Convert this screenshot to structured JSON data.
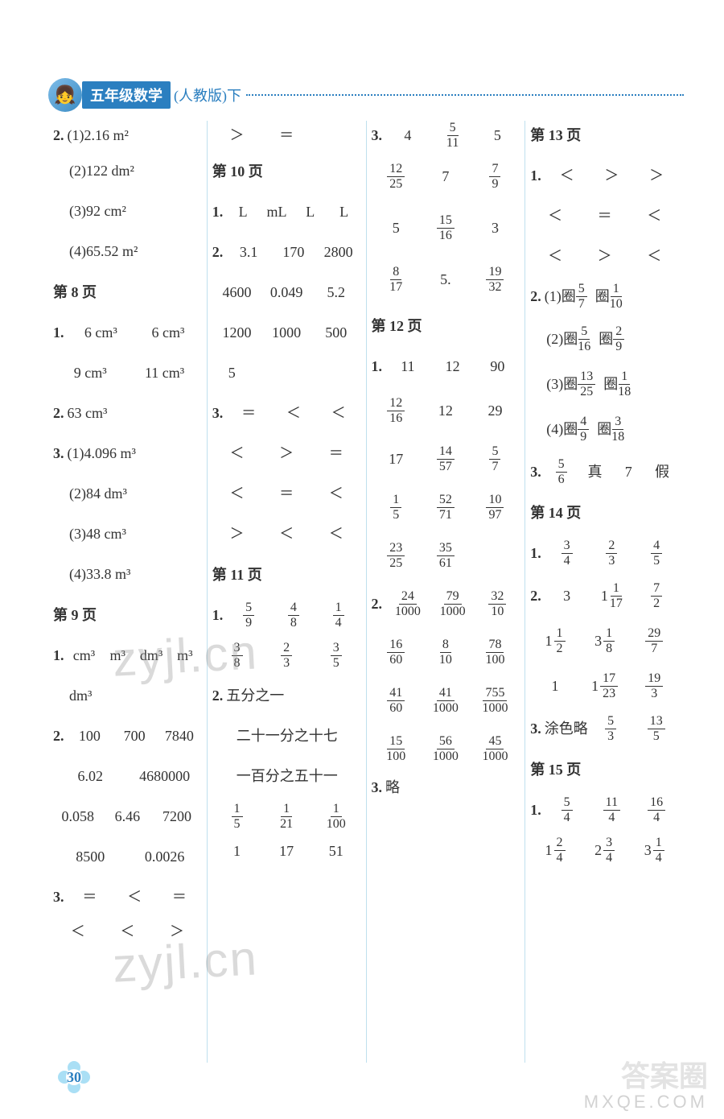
{
  "header": {
    "badge": "五年级数学",
    "sub": "(人教版)下"
  },
  "page_number": "30",
  "watermarks": {
    "site": "zyjl.cn",
    "bottom": "MXQE.COM",
    "logo": "答案圈"
  },
  "col1": {
    "r1": {
      "lead": "2.",
      "a": "(1)2.16 m²"
    },
    "r2": "(2)122 dm²",
    "r3": "(3)92 cm²",
    "r4": "(4)65.52 m²",
    "p8": "第 8 页",
    "r5": {
      "lead": "1.",
      "a": "6 cm³",
      "b": "6 cm³"
    },
    "r6": {
      "a": "9 cm³",
      "b": "11 cm³"
    },
    "r7": {
      "lead": "2.",
      "a": "63 cm³"
    },
    "r8": {
      "lead": "3.",
      "a": "(1)4.096 m³"
    },
    "r9": "(2)84 dm³",
    "r10": "(3)48 cm³",
    "r11": "(4)33.8 m³",
    "p9": "第 9 页",
    "r12": {
      "lead": "1.",
      "a": "cm³",
      "b": "m³",
      "c": "dm³",
      "d": "m³"
    },
    "r13": {
      "a": "dm³"
    },
    "r14": {
      "lead": "2.",
      "a": "100",
      "b": "700",
      "c": "7840"
    },
    "r15": {
      "a": "6.02",
      "b": "4680000"
    },
    "r16": {
      "a": "0.058",
      "b": "6.46",
      "c": "7200"
    },
    "r17": {
      "a": "8500",
      "b": "0.0026"
    },
    "r18": {
      "lead": "3.",
      "a": "＝",
      "b": "＜",
      "c": "＝"
    },
    "r19": {
      "a": "＜",
      "b": "＜",
      "c": "＞"
    }
  },
  "col2": {
    "r0": {
      "a": "＞",
      "b": "＝"
    },
    "p10": "第 10 页",
    "r1": {
      "lead": "1.",
      "a": "L",
      "b": "mL",
      "c": "L",
      "d": "L"
    },
    "r2": {
      "lead": "2.",
      "a": "3.1",
      "b": "170",
      "c": "2800"
    },
    "r3": {
      "a": "4600",
      "b": "0.049",
      "c": "5.2"
    },
    "r4": {
      "a": "1200",
      "b": "1000",
      "c": "500"
    },
    "r5": {
      "a": "5"
    },
    "r6": {
      "lead": "3.",
      "a": "＝",
      "b": "＜",
      "c": "＜"
    },
    "r7": {
      "a": "＜",
      "b": "＞",
      "c": "＝"
    },
    "r8": {
      "a": "＜",
      "b": "＝",
      "c": "＜"
    },
    "r9": {
      "a": "＞",
      "b": "＜",
      "c": "＜"
    },
    "p11": "第 11 页",
    "r10": {
      "lead": "1.",
      "a": {
        "n": "5",
        "d": "9"
      },
      "b": {
        "n": "4",
        "d": "8"
      },
      "c": {
        "n": "1",
        "d": "4"
      }
    },
    "r11": {
      "a": {
        "n": "3",
        "d": "8"
      },
      "b": {
        "n": "2",
        "d": "3"
      },
      "c": {
        "n": "3",
        "d": "5"
      }
    },
    "r12": {
      "lead": "2.",
      "a": "五分之一"
    },
    "r13": "二十一分之十七",
    "r14": "一百分之五十一",
    "r15": {
      "a": {
        "n": "1",
        "d": "5"
      },
      "b": {
        "n": "1",
        "d": "21"
      },
      "c": {
        "n": "1",
        "d": "100"
      }
    },
    "r16": {
      "a": "1",
      "b": "17",
      "c": "51"
    }
  },
  "col3": {
    "r1": {
      "lead": "3.",
      "a": "4",
      "b": {
        "n": "5",
        "d": "11"
      },
      "c": "5"
    },
    "r2": {
      "a": {
        "n": "12",
        "d": "25"
      },
      "b": "7",
      "c": {
        "n": "7",
        "d": "9"
      }
    },
    "r3": {
      "a": "5",
      "b": {
        "n": "15",
        "d": "16"
      },
      "c": "3"
    },
    "r4": {
      "a": {
        "n": "8",
        "d": "17"
      },
      "b": "5.",
      "c": {
        "n": "19",
        "d": "32"
      }
    },
    "p12": "第 12 页",
    "r5": {
      "lead": "1.",
      "a": "11",
      "b": "12",
      "c": "90"
    },
    "r6": {
      "a": {
        "n": "12",
        "d": "16"
      },
      "b": "12",
      "c": "29"
    },
    "r7": {
      "a": "17",
      "b": {
        "n": "14",
        "d": "57"
      },
      "c": {
        "n": "5",
        "d": "7"
      }
    },
    "r8": {
      "a": {
        "n": "1",
        "d": "5"
      },
      "b": {
        "n": "52",
        "d": "71"
      },
      "c": {
        "n": "10",
        "d": "97"
      }
    },
    "r9": {
      "a": {
        "n": "23",
        "d": "25"
      },
      "b": {
        "n": "35",
        "d": "61"
      }
    },
    "r10": {
      "lead": "2.",
      "a": {
        "n": "24",
        "d": "1000"
      },
      "b": {
        "n": "79",
        "d": "1000"
      },
      "c": {
        "n": "32",
        "d": "10"
      }
    },
    "r11": {
      "a": {
        "n": "16",
        "d": "60"
      },
      "b": {
        "n": "8",
        "d": "10"
      },
      "c": {
        "n": "78",
        "d": "100"
      }
    },
    "r12": {
      "a": {
        "n": "41",
        "d": "60"
      },
      "b": {
        "n": "41",
        "d": "1000"
      },
      "c": {
        "n": "755",
        "d": "1000"
      }
    },
    "r13": {
      "a": {
        "n": "15",
        "d": "100"
      },
      "b": {
        "n": "56",
        "d": "1000"
      },
      "c": {
        "n": "45",
        "d": "1000"
      }
    },
    "r14": {
      "lead": "3.",
      "a": "略"
    }
  },
  "col4": {
    "p13": "第 13 页",
    "r1": {
      "lead": "1.",
      "a": "＜",
      "b": "＞",
      "c": "＞"
    },
    "r2": {
      "a": "＜",
      "b": "＝",
      "c": "＜"
    },
    "r3": {
      "a": "＜",
      "b": "＞",
      "c": "＜"
    },
    "r4": {
      "lead": "2.",
      "a": "(1)圈",
      "af": {
        "n": "5",
        "d": "7"
      },
      "b": "圈",
      "bf": {
        "n": "1",
        "d": "10"
      }
    },
    "r5": {
      "a": "(2)圈",
      "af": {
        "n": "5",
        "d": "16"
      },
      "b": "圈",
      "bf": {
        "n": "2",
        "d": "9"
      }
    },
    "r6": {
      "a": "(3)圈",
      "af": {
        "n": "13",
        "d": "25"
      },
      "b": "圈",
      "bf": {
        "n": "1",
        "d": "18"
      }
    },
    "r7": {
      "a": "(4)圈",
      "af": {
        "n": "4",
        "d": "9"
      },
      "b": "圈",
      "bf": {
        "n": "3",
        "d": "18"
      }
    },
    "r8": {
      "lead": "3.",
      "a": {
        "n": "5",
        "d": "6"
      },
      "b": "真",
      "c": "7",
      "d": "假"
    },
    "p14": "第 14 页",
    "r9": {
      "lead": "1.",
      "a": {
        "n": "3",
        "d": "4"
      },
      "b": {
        "n": "2",
        "d": "3"
      },
      "c": {
        "n": "4",
        "d": "5"
      }
    },
    "r10": {
      "lead": "2.",
      "a": "3",
      "b": {
        "w": "1",
        "n": "1",
        "d": "17"
      },
      "c": {
        "n": "7",
        "d": "2"
      }
    },
    "r11": {
      "a": {
        "w": "1",
        "n": "1",
        "d": "2"
      },
      "b": {
        "w": "3",
        "n": "1",
        "d": "8"
      },
      "c": {
        "n": "29",
        "d": "7"
      }
    },
    "r12": {
      "a": "1",
      "b": {
        "w": "1",
        "n": "17",
        "d": "23"
      },
      "c": {
        "n": "19",
        "d": "3"
      }
    },
    "r13": {
      "lead": "3.",
      "a": "涂色略",
      "b": {
        "n": "5",
        "d": "3"
      },
      "c": {
        "n": "13",
        "d": "5"
      }
    },
    "p15": "第 15 页",
    "r14": {
      "lead": "1.",
      "a": {
        "n": "5",
        "d": "4"
      },
      "b": {
        "n": "11",
        "d": "4"
      },
      "c": {
        "n": "16",
        "d": "4"
      }
    },
    "r15": {
      "a": {
        "w": "1",
        "n": "2",
        "d": "4"
      },
      "b": {
        "w": "2",
        "n": "3",
        "d": "4"
      },
      "c": {
        "w": "3",
        "n": "1",
        "d": "4"
      }
    }
  }
}
